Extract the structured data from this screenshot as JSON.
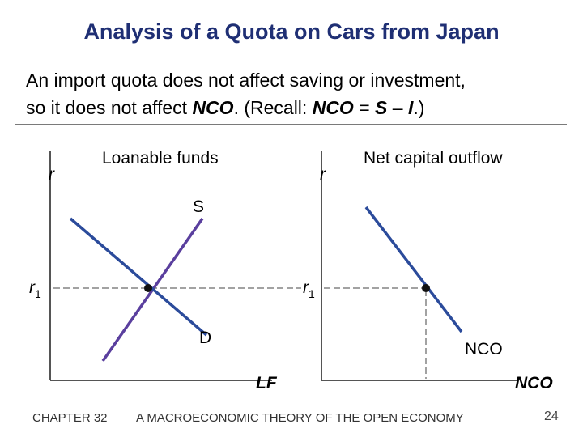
{
  "slide": {
    "title": "Analysis of a Quota on Cars from Japan",
    "text": {
      "line1": "An import quota does not affect saving or investment,",
      "line2_a": "so it does not affect ",
      "line2_nco": "NCO",
      "line2_b": ".  (Recall:  ",
      "eq_nco": "NCO",
      "eq_mid": " = ",
      "eq_s": "S",
      "eq_dash": " – ",
      "eq_i": "I",
      "eq_end": ".)"
    }
  },
  "left_graph": {
    "axis_label": "r",
    "title": "Loanable funds",
    "rate_label_main": "r",
    "rate_label_sub": "1",
    "supply_label": "S",
    "demand_label": "D",
    "x_axis_label": "LF"
  },
  "right_graph": {
    "axis_label": "r",
    "title": "Net capital outflow",
    "rate_label_main": "r",
    "rate_label_sub": "1",
    "curve_label": "NCO",
    "x_axis_label": "NCO"
  },
  "colors": {
    "title": "#1f2f74",
    "supply_curve": "#5a3f9e",
    "demand_curve": "#2b4b9b",
    "nco_curve": "#2b4b9b"
  },
  "footer": {
    "chapter": "CHAPTER 32",
    "book": "A MACROECONOMIC THEORY OF THE OPEN ECONOMY",
    "page": "24"
  }
}
